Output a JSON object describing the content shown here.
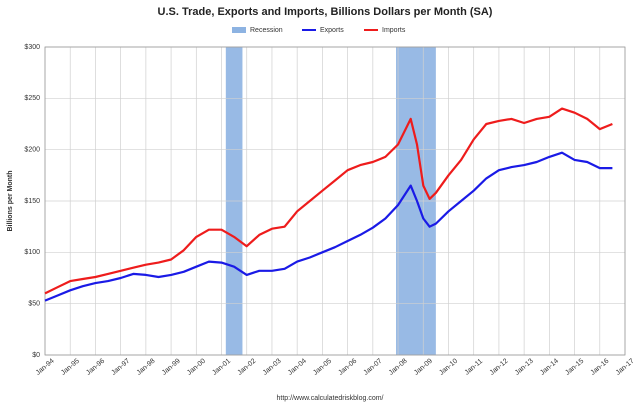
{
  "chart_data": {
    "type": "line",
    "title": "U.S. Trade, Exports and Imports, Billions Dollars per Month (SA)",
    "y_label": "Billions per Month",
    "source": "http://www.calculatedriskblog.com/",
    "grid": true,
    "legend": "top",
    "shading": {
      "name": "Recession",
      "color": "#8db3e2",
      "ranges": [
        [
          2001.17,
          2001.83
        ],
        [
          2007.92,
          2009.5
        ]
      ]
    },
    "x": [
      1994,
      1994.5,
      1995,
      1995.5,
      1996,
      1996.5,
      1997,
      1997.5,
      1998,
      1998.5,
      1999,
      1999.5,
      2000,
      2000.5,
      2001,
      2001.5,
      2002,
      2002.5,
      2003,
      2003.5,
      2004,
      2004.5,
      2005,
      2005.5,
      2006,
      2006.5,
      2007,
      2007.5,
      2008,
      2008.5,
      2008.75,
      2009,
      2009.25,
      2009.5,
      2010,
      2010.5,
      2011,
      2011.5,
      2012,
      2012.5,
      2013,
      2013.5,
      2014,
      2014.5,
      2015,
      2015.5,
      2016,
      2016.5
    ],
    "series": [
      {
        "name": "Exports",
        "color": "#1a1ae6",
        "values": [
          53,
          58,
          63,
          67,
          70,
          72,
          75,
          79,
          78,
          76,
          78,
          81,
          86,
          91,
          90,
          86,
          78,
          82,
          82,
          84,
          91,
          95,
          100,
          105,
          111,
          117,
          124,
          133,
          146,
          165,
          150,
          133,
          125,
          128,
          140,
          150,
          160,
          172,
          180,
          183,
          185,
          188,
          193,
          197,
          190,
          188,
          182,
          182
        ]
      },
      {
        "name": "Imports",
        "color": "#ee1c1c",
        "values": [
          60,
          66,
          72,
          74,
          76,
          79,
          82,
          85,
          88,
          90,
          93,
          102,
          115,
          122,
          122,
          115,
          106,
          117,
          123,
          125,
          140,
          150,
          160,
          170,
          180,
          185,
          188,
          193,
          205,
          230,
          205,
          165,
          152,
          158,
          175,
          190,
          210,
          225,
          228,
          230,
          226,
          230,
          232,
          240,
          236,
          230,
          220,
          225
        ]
      }
    ],
    "xlim": [
      1994,
      2017
    ],
    "xticks": [
      {
        "value": 1994,
        "label": "Jan-94"
      },
      {
        "value": 1995,
        "label": "Jan-95"
      },
      {
        "value": 1996,
        "label": "Jan-96"
      },
      {
        "value": 1997,
        "label": "Jan-97"
      },
      {
        "value": 1998,
        "label": "Jan-98"
      },
      {
        "value": 1999,
        "label": "Jan-99"
      },
      {
        "value": 2000,
        "label": "Jan-00"
      },
      {
        "value": 2001,
        "label": "Jan-01"
      },
      {
        "value": 2002,
        "label": "Jan-02"
      },
      {
        "value": 2003,
        "label": "Jan-03"
      },
      {
        "value": 2004,
        "label": "Jan-04"
      },
      {
        "value": 2005,
        "label": "Jan-05"
      },
      {
        "value": 2006,
        "label": "Jan-06"
      },
      {
        "value": 2007,
        "label": "Jan-07"
      },
      {
        "value": 2008,
        "label": "Jan-08"
      },
      {
        "value": 2009,
        "label": "Jan-09"
      },
      {
        "value": 2010,
        "label": "Jan-10"
      },
      {
        "value": 2011,
        "label": "Jan-11"
      },
      {
        "value": 2012,
        "label": "Jan-12"
      },
      {
        "value": 2013,
        "label": "Jan-13"
      },
      {
        "value": 2014,
        "label": "Jan-14"
      },
      {
        "value": 2015,
        "label": "Jan-15"
      },
      {
        "value": 2016,
        "label": "Jan-16"
      },
      {
        "value": 2017,
        "label": "Jan-17"
      }
    ],
    "ylim": [
      0,
      300
    ],
    "yticks": [
      {
        "value": 0,
        "label": "$0"
      },
      {
        "value": 50,
        "label": "$50"
      },
      {
        "value": 100,
        "label": "$100"
      },
      {
        "value": 150,
        "label": "$150"
      },
      {
        "value": 200,
        "label": "$200"
      },
      {
        "value": 250,
        "label": "$250"
      },
      {
        "value": 300,
        "label": "$300"
      }
    ]
  }
}
